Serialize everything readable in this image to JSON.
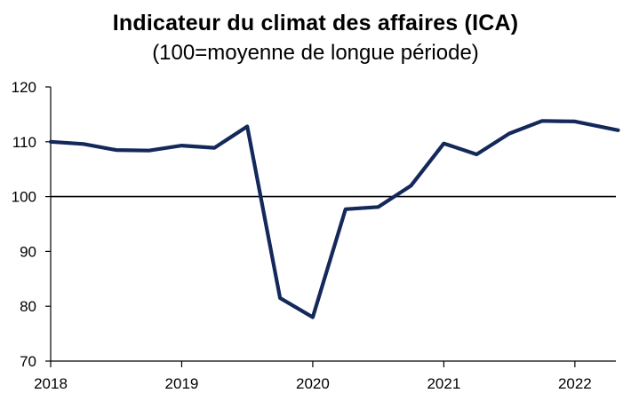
{
  "chart_data": {
    "type": "line",
    "title": "Indicateur du climat des affaires (ICA)",
    "subtitle": "(100=moyenne de longue période)",
    "xlabel": "",
    "ylabel": "",
    "xlim": [
      2018,
      2022.33
    ],
    "ylim": [
      70,
      120
    ],
    "yticks": [
      70,
      80,
      90,
      100,
      110,
      120
    ],
    "xticks": [
      "2018",
      "2019",
      "2020",
      "2021",
      "2022"
    ],
    "reference_line": 100,
    "grid": false,
    "legend": "none",
    "line_color": "#14285a",
    "series": [
      {
        "name": "",
        "x": [
          2018.0,
          2018.25,
          2018.5,
          2018.75,
          2019.0,
          2019.25,
          2019.5,
          2019.75,
          2020.0,
          2020.25,
          2020.5,
          2020.75,
          2021.0,
          2021.25,
          2021.5,
          2021.75,
          2022.0,
          2022.33
        ],
        "values": [
          110.0,
          109.6,
          108.5,
          108.4,
          109.3,
          108.9,
          112.8,
          81.5,
          78.0,
          97.7,
          98.1,
          102.0,
          109.7,
          107.7,
          111.5,
          113.8,
          113.7,
          112.1
        ]
      }
    ]
  }
}
